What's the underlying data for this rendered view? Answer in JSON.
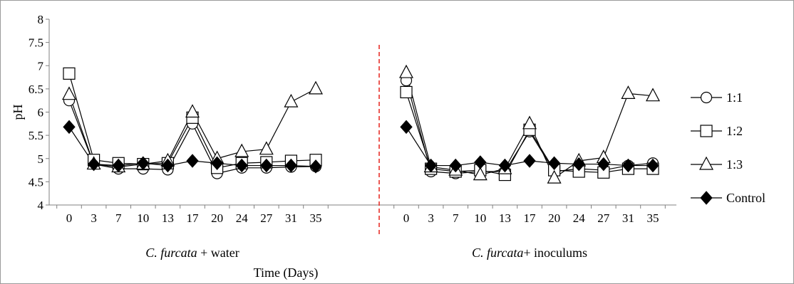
{
  "chart_data": {
    "type": "line",
    "ylabel": "pH",
    "xlabel": "Time (Days)",
    "ylim": [
      4,
      8
    ],
    "yticks": [
      "4",
      "4.5",
      "5",
      "5.5",
      "6",
      "6.5",
      "7",
      "7.5",
      "8"
    ],
    "grid": false,
    "legend_position": "right",
    "groups": [
      {
        "label_italic": "C. furcata",
        "label_rest": " + water",
        "categories": [
          "0",
          "3",
          "7",
          "10",
          "13",
          "17",
          "20",
          "24",
          "27",
          "31",
          "35"
        ],
        "series": [
          {
            "name": "1:1",
            "marker": "circle",
            "values": [
              6.25,
              4.88,
              4.78,
              4.78,
              4.76,
              5.75,
              4.68,
              4.8,
              4.8,
              4.82,
              4.83
            ]
          },
          {
            "name": "1:2",
            "marker": "square",
            "values": [
              6.83,
              4.97,
              4.9,
              4.88,
              4.9,
              5.88,
              4.8,
              4.9,
              4.92,
              4.95,
              4.97
            ]
          },
          {
            "name": "1:3",
            "marker": "triangle",
            "values": [
              6.38,
              4.88,
              4.82,
              4.88,
              4.95,
              6.0,
              5.0,
              5.15,
              5.2,
              6.22,
              6.5
            ]
          },
          {
            "name": "Control",
            "marker": "diamond",
            "values": [
              5.68,
              4.88,
              4.85,
              4.9,
              4.85,
              4.95,
              4.9,
              4.85,
              4.85,
              4.85,
              4.83
            ]
          }
        ]
      },
      {
        "label_italic": "C. furcata",
        "label_rest": "+ inoculums",
        "categories": [
          "0",
          "3",
          "7",
          "10",
          "13",
          "17",
          "20",
          "24",
          "27",
          "31",
          "35"
        ],
        "series": [
          {
            "name": "1:1",
            "marker": "circle",
            "values": [
              6.68,
              4.72,
              4.68,
              4.72,
              4.72,
              5.58,
              4.72,
              4.78,
              4.75,
              4.85,
              4.9
            ]
          },
          {
            "name": "1:2",
            "marker": "square",
            "values": [
              6.43,
              4.78,
              4.72,
              4.75,
              4.65,
              5.62,
              4.75,
              4.72,
              4.7,
              4.78,
              4.78
            ]
          },
          {
            "name": "1:3",
            "marker": "triangle",
            "values": [
              6.85,
              4.82,
              4.75,
              4.65,
              4.78,
              5.75,
              4.58,
              4.95,
              5.02,
              6.4,
              6.35
            ]
          },
          {
            "name": "Control",
            "marker": "diamond",
            "values": [
              5.68,
              4.85,
              4.85,
              4.92,
              4.85,
              4.95,
              4.9,
              4.88,
              4.88,
              4.85,
              4.85
            ]
          }
        ]
      }
    ],
    "colors": {
      "marker_stroke": "#000000",
      "hollow_fill": "#ffffff",
      "control_fill": "#000000",
      "divider": "#e8302a",
      "axis": "#808080"
    }
  }
}
